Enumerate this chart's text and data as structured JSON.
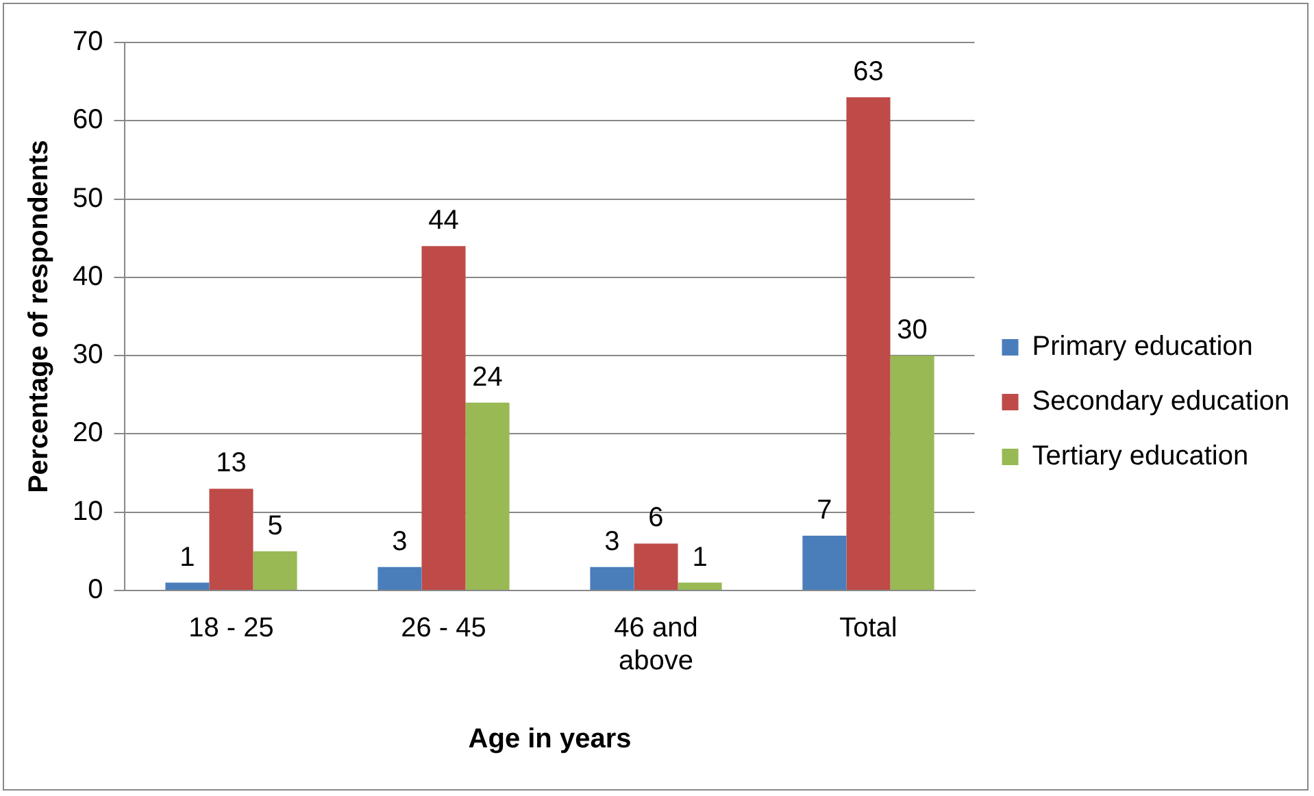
{
  "chart_data": {
    "type": "bar",
    "xlabel": "Age in years",
    "ylabel": "Percentage of respondents",
    "categories": [
      "18 - 25",
      "26 - 45",
      "46 and above",
      "Total"
    ],
    "series": [
      {
        "name": "Primary education",
        "color": "#4a7ebb",
        "values": [
          1,
          3,
          3,
          7
        ]
      },
      {
        "name": "Secondary education",
        "color": "#be4b48",
        "values": [
          13,
          44,
          6,
          63
        ]
      },
      {
        "name": "Tertiary education",
        "color": "#98b954",
        "values": [
          5,
          24,
          1,
          30
        ]
      }
    ],
    "ylim": [
      0,
      70
    ],
    "yticks": [
      0,
      10,
      20,
      30,
      40,
      50,
      60,
      70
    ],
    "grid": "y",
    "legend": "right",
    "data_labels": true
  }
}
